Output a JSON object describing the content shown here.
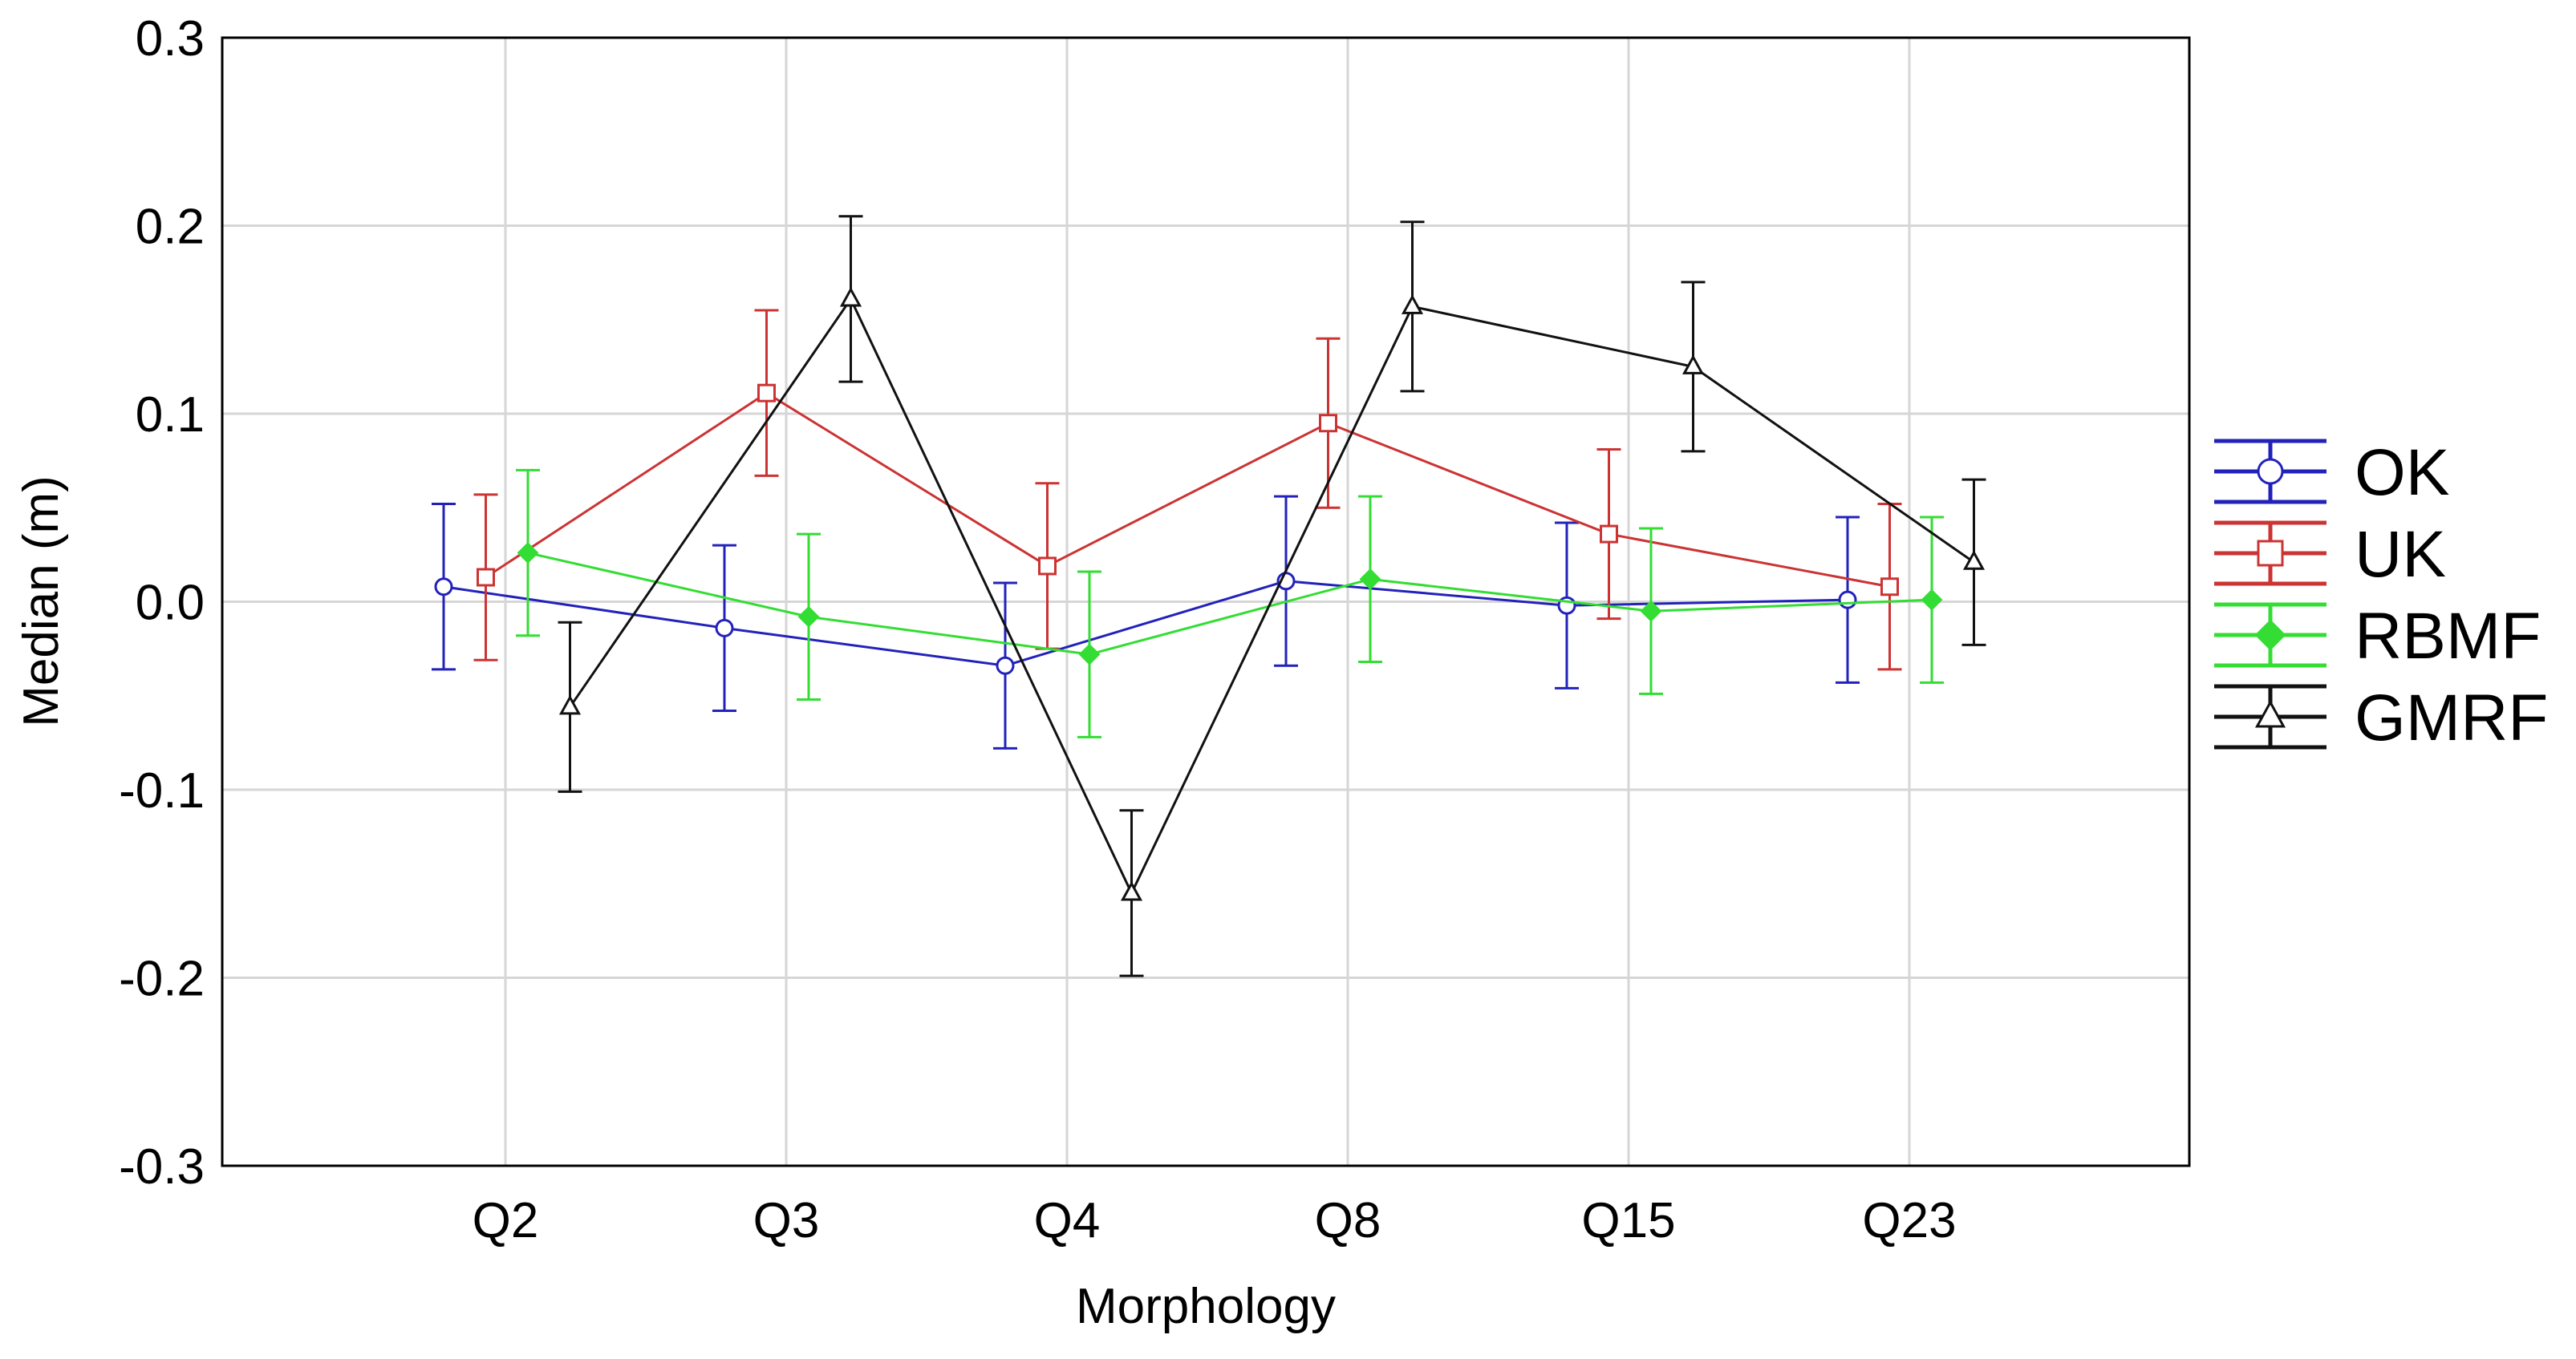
{
  "chart_data": {
    "type": "line",
    "subtype": "errorbar",
    "title": "",
    "xlabel": "Morphology",
    "ylabel": "Median (m)",
    "categories": [
      "Q2",
      "Q3",
      "Q4",
      "Q8",
      "Q15",
      "Q23"
    ],
    "ylim": [
      -0.3,
      0.3
    ],
    "yticks": [
      "0.3",
      "0.2",
      "0.1",
      "0.0",
      "-0.1",
      "-0.2",
      "-0.3"
    ],
    "ytick_values": [
      0.3,
      0.2,
      0.1,
      0.0,
      -0.1,
      -0.2,
      -0.3
    ],
    "grid": true,
    "legend_position": "right",
    "series": [
      {
        "name": "OK",
        "color": "#2222bb",
        "marker": "circle",
        "offset": -0.22,
        "values": [
          0.008,
          -0.014,
          -0.034,
          0.011,
          -0.002,
          0.001
        ],
        "error": [
          0.044,
          0.044,
          0.044,
          0.045,
          0.044,
          0.044
        ]
      },
      {
        "name": "UK",
        "color": "#cc3333",
        "marker": "square",
        "offset": -0.07,
        "values": [
          0.013,
          0.111,
          0.019,
          0.095,
          0.036,
          0.008
        ],
        "error": [
          0.044,
          0.044,
          0.044,
          0.045,
          0.045,
          0.044
        ]
      },
      {
        "name": "RBMF",
        "color": "#33dd33",
        "marker": "diamond",
        "offset": 0.08,
        "values": [
          0.026,
          -0.008,
          -0.028,
          0.012,
          -0.005,
          0.001
        ],
        "error": [
          0.044,
          0.044,
          0.044,
          0.044,
          0.044,
          0.044
        ]
      },
      {
        "name": "GMRF",
        "color": "#111111",
        "marker": "triangle",
        "offset": 0.23,
        "values": [
          -0.056,
          0.161,
          -0.155,
          0.157,
          0.125,
          0.021
        ],
        "error": [
          0.045,
          0.044,
          0.044,
          0.045,
          0.045,
          0.044
        ]
      }
    ]
  }
}
